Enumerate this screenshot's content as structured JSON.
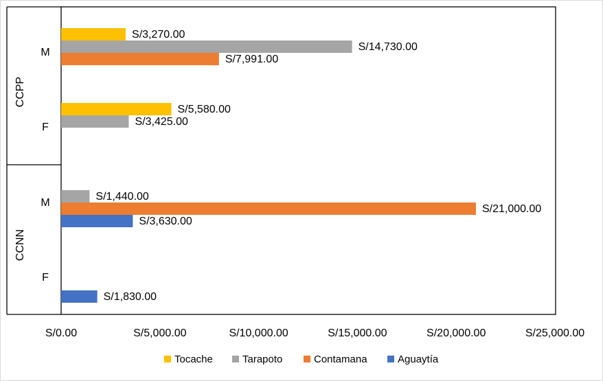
{
  "chart_data": {
    "type": "bar",
    "orientation": "horizontal",
    "xlim": [
      0,
      25000
    ],
    "x_ticks": [
      "S/0.00",
      "S/5,000.00",
      "S/10,000.00",
      "S/15,000.00",
      "S/20,000.00",
      "S/25,000.00"
    ],
    "x_tick_values": [
      0,
      5000,
      10000,
      15000,
      20000,
      25000
    ],
    "groups": [
      {
        "label": "CCPP",
        "categories": [
          "M",
          "F"
        ]
      },
      {
        "label": "CCNN",
        "categories": [
          "M",
          "F"
        ]
      }
    ],
    "series": [
      {
        "name": "Tocache",
        "color": "#FFC000",
        "values": {
          "CCPP-M": 3270,
          "CCPP-F": 5580
        }
      },
      {
        "name": "Tarapoto",
        "color": "#A5A5A5",
        "values": {
          "CCPP-M": 14730,
          "CCPP-F": 3425,
          "CCNN-M": 1440
        }
      },
      {
        "name": "Contamana",
        "color": "#ED7D31",
        "values": {
          "CCPP-M": 7991,
          "CCNN-M": 21000
        }
      },
      {
        "name": "Aguaytía",
        "color": "#4472C4",
        "values": {
          "CCNN-M": 3630,
          "CCNN-F": 1830
        }
      }
    ],
    "bars": [
      {
        "key": "CCPP-M",
        "series": "Tocache",
        "value": 3270,
        "label": "S/3,270.00"
      },
      {
        "key": "CCPP-M",
        "series": "Tarapoto",
        "value": 14730,
        "label": "S/14,730.00"
      },
      {
        "key": "CCPP-M",
        "series": "Contamana",
        "value": 7991,
        "label": "S/7,991.00"
      },
      {
        "key": "CCPP-F",
        "series": "Tocache",
        "value": 5580,
        "label": "S/5,580.00"
      },
      {
        "key": "CCPP-F",
        "series": "Tarapoto",
        "value": 3425,
        "label": "S/3,425.00"
      },
      {
        "key": "CCNN-M",
        "series": "Tarapoto",
        "value": 1440,
        "label": "S/1,440.00"
      },
      {
        "key": "CCNN-M",
        "series": "Contamana",
        "value": 21000,
        "label": "S/21,000.00"
      },
      {
        "key": "CCNN-M",
        "series": "Aguaytía",
        "value": 3630,
        "label": "S/3,630.00"
      },
      {
        "key": "CCNN-F",
        "series": "Aguaytía",
        "value": 1830,
        "label": "S/1,830.00"
      }
    ],
    "legend": {
      "position": "bottom",
      "order": [
        "Tocache",
        "Tarapoto",
        "Contamana",
        "Aguaytía"
      ]
    },
    "grid": false
  }
}
